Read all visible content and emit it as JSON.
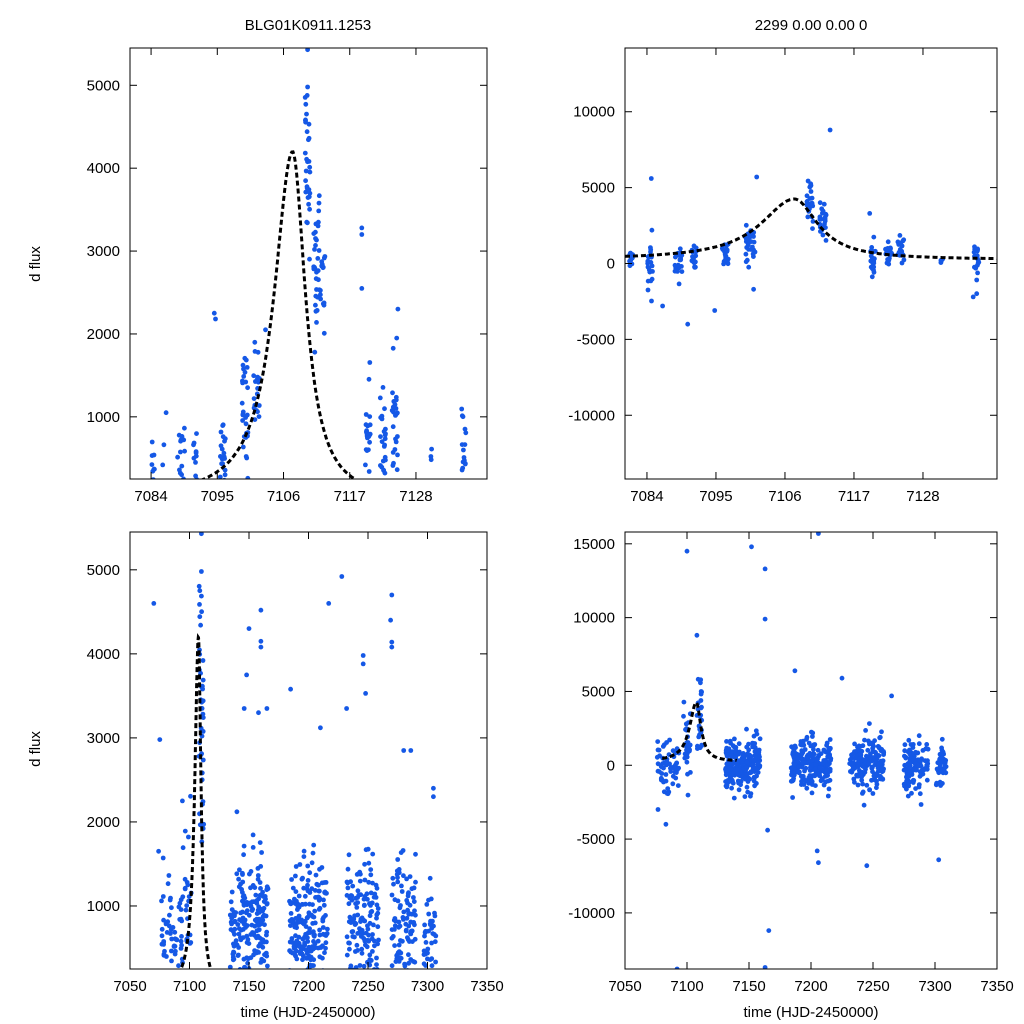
{
  "figure": {
    "ylabel": "d flux",
    "xlabel": "time (HJD-2450000)"
  },
  "colors": {
    "points": "#1558e6",
    "model": "#000000"
  },
  "chart_data": [
    {
      "id": "zoom-flux",
      "type": "scatter",
      "title": "BLG01K0911.1253",
      "ylabel": "d flux",
      "xlabel": "",
      "xlim": [
        7080.5,
        7139.8
      ],
      "ylim": [
        250,
        5450
      ],
      "xticks": [
        7084,
        7095,
        7106,
        7117,
        7128
      ],
      "yticks": [
        1000,
        2000,
        3000,
        4000,
        5000
      ],
      "model": {
        "t0": 7107.5,
        "peak": 4200,
        "baseline": 0,
        "tau_before": 3.7,
        "tau_after": 2.6
      },
      "series": [
        {
          "name": "data",
          "clusters": [
            {
              "x": 7084.3,
              "xspread": 0.25,
              "center": 450,
              "sd": 200,
              "n": 10
            },
            {
              "x": 7086.0,
              "xspread": 0.2,
              "center": 560,
              "sd": 100,
              "n": 2
            },
            {
              "x": 7089.0,
              "xspread": 0.6,
              "center": 580,
              "sd": 220,
              "n": 14
            },
            {
              "x": 7091.3,
              "xspread": 0.3,
              "center": 600,
              "sd": 200,
              "n": 10
            },
            {
              "x": 7096.0,
              "xspread": 0.5,
              "center": 600,
              "sd": 200,
              "n": 20
            },
            {
              "x": 7099.5,
              "xspread": 0.6,
              "center": 1050,
              "sd": 350,
              "n": 28
            },
            {
              "x": 7101.5,
              "xspread": 0.5,
              "center": 1400,
              "sd": 300,
              "n": 20
            },
            {
              "x": 7110.0,
              "xspread": 0.4,
              "center": 3900,
              "sd": 450,
              "n": 32
            },
            {
              "x": 7111.5,
              "xspread": 0.5,
              "center": 2900,
              "sd": 400,
              "n": 30
            },
            {
              "x": 7112.5,
              "xspread": 0.4,
              "center": 2700,
              "sd": 300,
              "n": 14
            },
            {
              "x": 7120.0,
              "xspread": 0.4,
              "center": 850,
              "sd": 280,
              "n": 22
            },
            {
              "x": 7122.5,
              "xspread": 0.5,
              "center": 750,
              "sd": 320,
              "n": 24
            },
            {
              "x": 7124.5,
              "xspread": 0.5,
              "center": 900,
              "sd": 350,
              "n": 26
            },
            {
              "x": 7130.5,
              "xspread": 0.2,
              "center": 420,
              "sd": 100,
              "n": 3
            },
            {
              "x": 7136.0,
              "xspread": 0.4,
              "center": 550,
              "sd": 200,
              "n": 16
            }
          ],
          "outliers": [
            {
              "x": 7094.5,
              "y": 2250
            },
            {
              "x": 7094.7,
              "y": 2180
            },
            {
              "x": 7110.0,
              "y": 5430
            },
            {
              "x": 7110.0,
              "y": 4980
            },
            {
              "x": 7119.0,
              "y": 3280
            },
            {
              "x": 7119.0,
              "y": 3200
            },
            {
              "x": 7119.0,
              "y": 2550
            },
            {
              "x": 7125.0,
              "y": 2300
            },
            {
              "x": 7124.8,
              "y": 1950
            },
            {
              "x": 7111.2,
              "y": 1780
            },
            {
              "x": 7103.0,
              "y": 2050
            },
            {
              "x": 7086.5,
              "y": 1050
            }
          ]
        }
      ]
    },
    {
      "id": "zoom-residual",
      "type": "scatter",
      "title": "2299 0.00 0.00 0",
      "ylabel": "",
      "xlabel": "",
      "xlim": [
        7080.5,
        7139.8
      ],
      "ylim": [
        -14200,
        14200
      ],
      "xticks": [
        7084,
        7095,
        7106,
        7117,
        7128
      ],
      "yticks": [
        -10000,
        -5000,
        0,
        5000,
        10000
      ],
      "model": {
        "t0": 7107.5,
        "peak": 4000,
        "baseline": 250,
        "tau_before": 6.5,
        "tau_after": 4.5
      },
      "series": [
        {
          "name": "data",
          "clusters": [
            {
              "x": 7081.5,
              "xspread": 0.3,
              "center": 300,
              "sd": 350,
              "n": 12
            },
            {
              "x": 7084.5,
              "xspread": 0.4,
              "center": -300,
              "sd": 900,
              "n": 22
            },
            {
              "x": 7089.0,
              "xspread": 0.6,
              "center": 100,
              "sd": 500,
              "n": 22
            },
            {
              "x": 7091.5,
              "xspread": 0.4,
              "center": 300,
              "sd": 500,
              "n": 16
            },
            {
              "x": 7096.5,
              "xspread": 0.5,
              "center": 500,
              "sd": 500,
              "n": 20
            },
            {
              "x": 7100.5,
              "xspread": 0.8,
              "center": 1200,
              "sd": 600,
              "n": 30
            },
            {
              "x": 7110.0,
              "xspread": 0.5,
              "center": 3800,
              "sd": 700,
              "n": 26
            },
            {
              "x": 7112.0,
              "xspread": 0.6,
              "center": 2800,
              "sd": 500,
              "n": 24
            },
            {
              "x": 7120.0,
              "xspread": 0.4,
              "center": 400,
              "sd": 700,
              "n": 22
            },
            {
              "x": 7122.5,
              "xspread": 0.5,
              "center": 700,
              "sd": 600,
              "n": 22
            },
            {
              "x": 7124.5,
              "xspread": 0.5,
              "center": 800,
              "sd": 500,
              "n": 22
            },
            {
              "x": 7131.0,
              "xspread": 0.2,
              "center": 200,
              "sd": 200,
              "n": 4
            },
            {
              "x": 7136.5,
              "xspread": 0.4,
              "center": 0,
              "sd": 700,
              "n": 18
            }
          ],
          "outliers": [
            {
              "x": 7084.7,
              "y": 5600
            },
            {
              "x": 7101.5,
              "y": 5700
            },
            {
              "x": 7113.2,
              "y": 8800
            },
            {
              "x": 7090.5,
              "y": -4000
            },
            {
              "x": 7094.8,
              "y": -3100
            },
            {
              "x": 7101.0,
              "y": -1700
            },
            {
              "x": 7136.0,
              "y": -2200
            },
            {
              "x": 7119.5,
              "y": 3300
            },
            {
              "x": 7086.5,
              "y": -2800
            }
          ]
        }
      ]
    },
    {
      "id": "full-flux",
      "type": "scatter",
      "title": "",
      "ylabel": "d flux",
      "xlabel": "time (HJD-2450000)",
      "xlim": [
        7050,
        7350
      ],
      "ylim": [
        250,
        5450
      ],
      "xticks": [
        7050,
        7100,
        7150,
        7200,
        7250,
        7300,
        7350
      ],
      "yticks": [
        1000,
        2000,
        3000,
        4000,
        5000
      ],
      "model": {
        "t0": 7107.5,
        "peak": 4200,
        "baseline": 0,
        "tau_before": 3.7,
        "tau_after": 2.6,
        "xmin": 7080,
        "xmax": 7140
      },
      "series": [
        {
          "name": "data",
          "clusters": [
            {
              "x": 7085,
              "xspread": 9,
              "center": 650,
              "sd": 300,
              "n": 55
            },
            {
              "x": 7098,
              "xspread": 4,
              "center": 1100,
              "sd": 500,
              "n": 25
            },
            {
              "x": 7110,
              "xspread": 2,
              "center": 3300,
              "sd": 900,
              "n": 40
            },
            {
              "x": 7150,
              "xspread": 16,
              "center": 700,
              "sd": 450,
              "n": 230
            },
            {
              "x": 7200,
              "xspread": 16,
              "center": 650,
              "sd": 450,
              "n": 230
            },
            {
              "x": 7245,
              "xspread": 14,
              "center": 650,
              "sd": 450,
              "n": 170
            },
            {
              "x": 7280,
              "xspread": 10,
              "center": 650,
              "sd": 450,
              "n": 110
            },
            {
              "x": 7302,
              "xspread": 5,
              "center": 600,
              "sd": 350,
              "n": 45
            }
          ],
          "outliers": [
            {
              "x": 7070,
              "y": 4600
            },
            {
              "x": 7075,
              "y": 2980
            },
            {
              "x": 7074,
              "y": 1650
            },
            {
              "x": 7150,
              "y": 4300
            },
            {
              "x": 7148,
              "y": 3750
            },
            {
              "x": 7146,
              "y": 3350
            },
            {
              "x": 7160,
              "y": 4520
            },
            {
              "x": 7160,
              "y": 4150
            },
            {
              "x": 7160,
              "y": 4080
            },
            {
              "x": 7158,
              "y": 3300
            },
            {
              "x": 7165,
              "y": 3350
            },
            {
              "x": 7185,
              "y": 3580
            },
            {
              "x": 7210,
              "y": 3120
            },
            {
              "x": 7217,
              "y": 4600
            },
            {
              "x": 7228,
              "y": 4920
            },
            {
              "x": 7232,
              "y": 3350
            },
            {
              "x": 7246,
              "y": 3980
            },
            {
              "x": 7246,
              "y": 3880
            },
            {
              "x": 7248,
              "y": 3530
            },
            {
              "x": 7270,
              "y": 4700
            },
            {
              "x": 7269,
              "y": 4400
            },
            {
              "x": 7270,
              "y": 4140
            },
            {
              "x": 7270,
              "y": 4080
            },
            {
              "x": 7280,
              "y": 2850
            },
            {
              "x": 7286,
              "y": 2850
            },
            {
              "x": 7305,
              "y": 2400
            },
            {
              "x": 7305,
              "y": 2300
            },
            {
              "x": 7110,
              "y": 5430
            },
            {
              "x": 7110,
              "y": 4980
            },
            {
              "x": 7094,
              "y": 2250
            }
          ]
        }
      ]
    },
    {
      "id": "full-residual",
      "type": "scatter",
      "title": "",
      "ylabel": "",
      "xlabel": "time (HJD-2450000)",
      "xlim": [
        7050,
        7350
      ],
      "ylim": [
        -13800,
        15800
      ],
      "xticks": [
        7050,
        7100,
        7150,
        7200,
        7250,
        7300,
        7350
      ],
      "yticks": [
        -10000,
        -5000,
        0,
        5000,
        10000,
        15000
      ],
      "model": {
        "t0": 7107.5,
        "peak": 4000,
        "baseline": 250,
        "tau_before": 6.5,
        "tau_after": 4.5,
        "xmin": 7080,
        "xmax": 7140
      },
      "series": [
        {
          "name": "data",
          "clusters": [
            {
              "x": 7085,
              "xspread": 9,
              "center": 0,
              "sd": 900,
              "n": 60
            },
            {
              "x": 7100,
              "xspread": 3,
              "center": 1500,
              "sd": 1200,
              "n": 25
            },
            {
              "x": 7110,
              "xspread": 2,
              "center": 3000,
              "sd": 1500,
              "n": 30
            },
            {
              "x": 7145,
              "xspread": 14,
              "center": 0,
              "sd": 900,
              "n": 220
            },
            {
              "x": 7200,
              "xspread": 16,
              "center": 0,
              "sd": 900,
              "n": 230
            },
            {
              "x": 7245,
              "xspread": 14,
              "center": 0,
              "sd": 900,
              "n": 170
            },
            {
              "x": 7285,
              "xspread": 10,
              "center": 0,
              "sd": 800,
              "n": 110
            },
            {
              "x": 7305,
              "xspread": 4,
              "center": 0,
              "sd": 700,
              "n": 45
            }
          ],
          "outliers": [
            {
              "x": 7100,
              "y": 14500
            },
            {
              "x": 7152,
              "y": 14800
            },
            {
              "x": 7206,
              "y": 15700
            },
            {
              "x": 7163,
              "y": 13300
            },
            {
              "x": 7163,
              "y": 9900
            },
            {
              "x": 7108,
              "y": 8800
            },
            {
              "x": 7187,
              "y": 6400
            },
            {
              "x": 7225,
              "y": 5900
            },
            {
              "x": 7265,
              "y": 4700
            },
            {
              "x": 7092,
              "y": -13800
            },
            {
              "x": 7163,
              "y": -13700
            },
            {
              "x": 7166,
              "y": -11200
            },
            {
              "x": 7205,
              "y": -5800
            },
            {
              "x": 7206,
              "y": -6600
            },
            {
              "x": 7245,
              "y": -6800
            },
            {
              "x": 7303,
              "y": -6400
            },
            {
              "x": 7083,
              "y": -4000
            },
            {
              "x": 7165,
              "y": -4400
            }
          ]
        }
      ]
    }
  ]
}
